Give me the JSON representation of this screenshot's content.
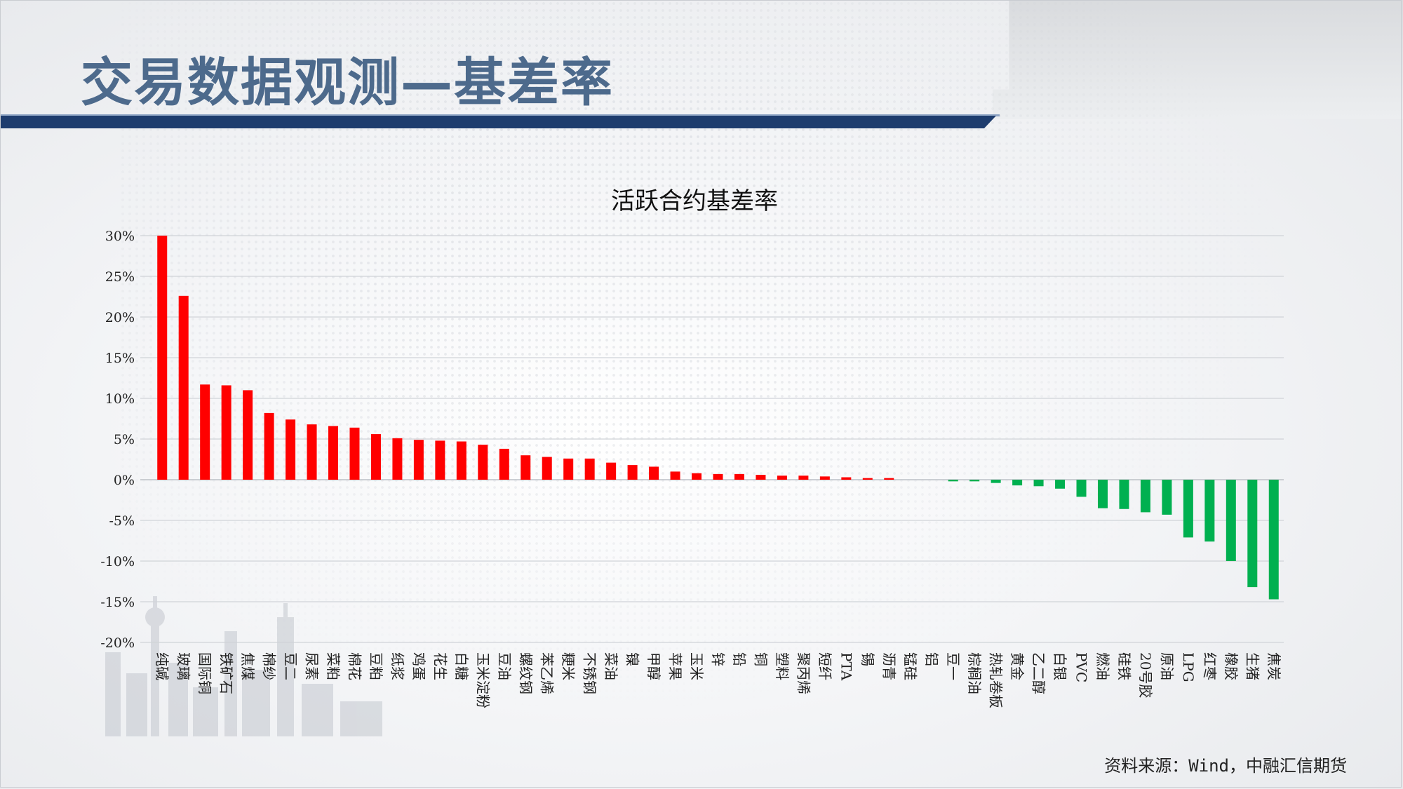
{
  "header": {
    "title": "交易数据观测—基差率"
  },
  "footer": {
    "source": "资料来源：Wind，中融汇信期货"
  },
  "colors": {
    "positive": "#ff0000",
    "negative": "#00b050",
    "header_band": "#1e3d6e",
    "title": "#4d6a8c"
  },
  "chart_data": {
    "type": "bar",
    "title": "活跃合约基差率",
    "xlabel": "",
    "ylabel": "",
    "ylim": [
      -0.2,
      0.3
    ],
    "yticks": [
      {
        "v": 0.3,
        "label": "30%"
      },
      {
        "v": 0.25,
        "label": "25%"
      },
      {
        "v": 0.2,
        "label": "20%"
      },
      {
        "v": 0.15,
        "label": "15%"
      },
      {
        "v": 0.1,
        "label": "10%"
      },
      {
        "v": 0.05,
        "label": "5%"
      },
      {
        "v": 0.0,
        "label": "0%"
      },
      {
        "v": -0.05,
        "label": "-5%"
      },
      {
        "v": -0.1,
        "label": "-10%"
      },
      {
        "v": -0.15,
        "label": "-15%"
      },
      {
        "v": -0.2,
        "label": "-20%"
      }
    ],
    "grid": true,
    "legend": false,
    "categories": [
      "纯碱",
      "玻璃",
      "国际铜",
      "铁矿石",
      "焦煤",
      "棉纱",
      "豆二",
      "尿素",
      "菜粕",
      "棉花",
      "豆粕",
      "纸浆",
      "鸡蛋",
      "花生",
      "白糖",
      "玉米淀粉",
      "豆油",
      "螺纹钢",
      "苯乙烯",
      "粳米",
      "不锈钢",
      "菜油",
      "镍",
      "甲醇",
      "苹果",
      "玉米",
      "锌",
      "铅",
      "铜",
      "塑料",
      "聚丙烯",
      "短纤",
      "PTA",
      "锡",
      "沥青",
      "锰硅",
      "铝",
      "豆一",
      "棕榈油",
      "热轧卷板",
      "黄金",
      "乙二醇",
      "白银",
      "PVC",
      "燃油",
      "硅铁",
      "20号胶",
      "原油",
      "LPG",
      "红枣",
      "橡胶",
      "生猪",
      "焦炭"
    ],
    "values": [
      0.3,
      0.226,
      0.117,
      0.116,
      0.11,
      0.082,
      0.074,
      0.068,
      0.066,
      0.064,
      0.056,
      0.051,
      0.049,
      0.048,
      0.047,
      0.043,
      0.038,
      0.03,
      0.028,
      0.026,
      0.026,
      0.021,
      0.018,
      0.016,
      0.01,
      0.008,
      0.007,
      0.007,
      0.006,
      0.005,
      0.005,
      0.004,
      0.003,
      0.002,
      0.002,
      0.0,
      0.0,
      -0.002,
      -0.002,
      -0.004,
      -0.007,
      -0.008,
      -0.011,
      -0.021,
      -0.035,
      -0.036,
      -0.04,
      -0.043,
      -0.071,
      -0.076,
      -0.1,
      -0.132,
      -0.147
    ]
  }
}
